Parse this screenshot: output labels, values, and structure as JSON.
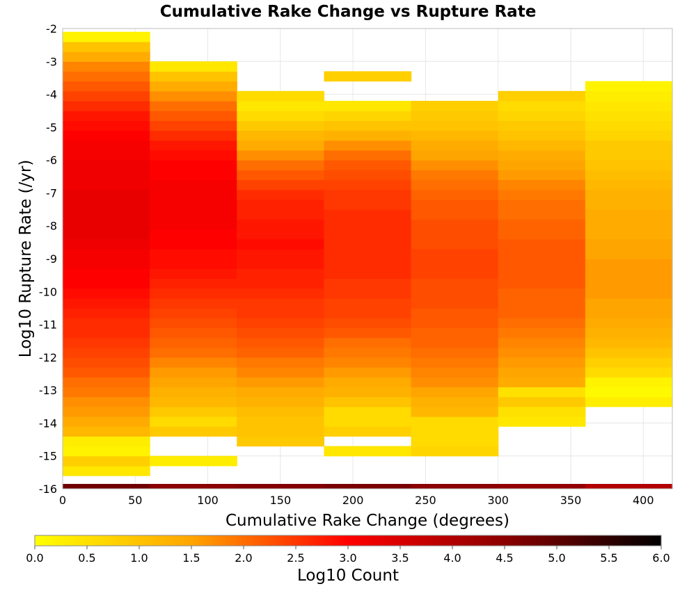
{
  "chart_data": {
    "type": "heatmap",
    "title": "Cumulative Rake Change vs Rupture Rate",
    "xlabel": "Cumulative Rake Change (degrees)",
    "ylabel": "Log10 Rupture Rate (/yr)",
    "xlim": [
      0,
      420
    ],
    "ylim": [
      -16,
      -2
    ],
    "x_ticks": [
      "0",
      "50",
      "100",
      "150",
      "200",
      "250",
      "300",
      "350",
      "400"
    ],
    "x_tick_values": [
      0,
      50,
      100,
      150,
      200,
      250,
      300,
      350,
      400
    ],
    "y_ticks": [
      "-2",
      "-3",
      "-4",
      "-5",
      "-6",
      "-7",
      "-8",
      "-9",
      "-10",
      "-11",
      "-12",
      "-13",
      "-14",
      "-15",
      "-16"
    ],
    "y_tick_values": [
      -2,
      -3,
      -4,
      -5,
      -6,
      -7,
      -8,
      -9,
      -10,
      -11,
      -12,
      -13,
      -14,
      -15,
      -16
    ],
    "grid": true,
    "x_bin_width": 60,
    "y_bin_height": 0.3,
    "colorscale": {
      "label": "Log10 Count",
      "min": 0.0,
      "max": 6.0,
      "ticks": [
        "0.0",
        "0.5",
        "1.0",
        "1.5",
        "2.0",
        "2.5",
        "3.0",
        "3.5",
        "4.0",
        "4.5",
        "5.0",
        "5.5",
        "6.0"
      ],
      "colors": [
        "#ffff00",
        "#ffa500",
        "#ff0000",
        "#8b0000",
        "#000000"
      ]
    },
    "columns": [
      {
        "x_start": 0,
        "y_start": -15.6,
        "values": [
          0.4,
          0.8,
          0.2,
          0.3,
          1.2,
          1.4,
          1.6,
          1.7,
          1.9,
          2.0,
          2.2,
          2.3,
          2.4,
          2.5,
          2.6,
          2.6,
          2.7,
          2.8,
          2.9,
          3.0,
          3.0,
          3.1,
          3.1,
          3.2,
          3.3,
          3.3,
          3.3,
          3.3,
          3.3,
          3.2,
          3.2,
          3.2,
          3.1,
          3.1,
          3.0,
          2.9,
          2.8,
          2.6,
          2.4,
          2.2,
          2.0,
          1.8,
          1.4,
          1.0,
          0.2
        ]
      },
      {
        "x_start": 60,
        "y_start": -15.3,
        "values": [
          0.3,
          null,
          null,
          0.9,
          0.6,
          0.9,
          1.2,
          1.3,
          1.5,
          1.6,
          1.8,
          2.0,
          2.1,
          2.2,
          2.3,
          2.4,
          2.5,
          2.6,
          2.7,
          2.8,
          2.9,
          2.9,
          3.0,
          3.0,
          3.1,
          3.1,
          3.1,
          3.1,
          3.1,
          3.0,
          3.0,
          2.9,
          2.8,
          2.6,
          2.4,
          2.2,
          2.0,
          1.7,
          1.4,
          1.0,
          0.4
        ]
      },
      {
        "x_start": 120,
        "y_start": -14.7,
        "values": [
          0.9,
          1.0,
          1.0,
          1.1,
          1.3,
          1.4,
          1.6,
          1.8,
          1.9,
          2.1,
          2.2,
          2.3,
          2.4,
          2.5,
          2.5,
          2.6,
          2.7,
          2.7,
          2.8,
          2.8,
          2.9,
          2.8,
          2.8,
          2.7,
          2.7,
          2.6,
          2.4,
          2.2,
          2.0,
          1.7,
          1.4,
          1.2,
          0.9,
          0.6,
          0.4,
          0.6
        ]
      },
      {
        "x_start": 180,
        "y_start": -15.0,
        "values": [
          0.4,
          null,
          0.8,
          0.6,
          0.6,
          1.0,
          1.3,
          1.4,
          1.6,
          1.8,
          1.9,
          2.0,
          2.2,
          2.3,
          2.4,
          2.4,
          2.5,
          2.5,
          2.6,
          2.6,
          2.6,
          2.6,
          2.6,
          2.6,
          2.6,
          2.5,
          2.5,
          2.4,
          2.3,
          2.2,
          2.0,
          1.7,
          1.3,
          1.0,
          0.7,
          0.4,
          null,
          null,
          0.8
        ]
      },
      {
        "x_start": 240,
        "y_start": -15.0,
        "values": [
          0.7,
          0.6,
          0.6,
          0.6,
          1.2,
          1.3,
          1.5,
          1.7,
          1.8,
          1.9,
          2.0,
          2.1,
          2.1,
          2.2,
          2.2,
          2.3,
          2.3,
          2.3,
          2.4,
          2.4,
          2.4,
          2.3,
          2.3,
          2.3,
          2.2,
          2.2,
          2.1,
          2.0,
          1.9,
          1.7,
          1.5,
          1.4,
          1.2,
          1.0,
          0.9,
          0.8
        ]
      },
      {
        "x_start": 300,
        "y_start": -14.1,
        "values": [
          0.4,
          0.5,
          0.9,
          0.5,
          1.4,
          1.5,
          1.6,
          1.7,
          1.8,
          1.9,
          2.0,
          2.1,
          2.1,
          2.1,
          2.2,
          2.2,
          2.2,
          2.2,
          2.2,
          2.1,
          2.1,
          2.0,
          2.0,
          1.9,
          1.8,
          1.6,
          1.5,
          1.4,
          1.2,
          1.0,
          0.9,
          0.7,
          0.6,
          0.8
        ]
      },
      {
        "x_start": 360,
        "y_start": -13.5,
        "values": [
          0.3,
          0.1,
          0.2,
          0.6,
          0.8,
          1.0,
          1.2,
          1.3,
          1.4,
          1.5,
          1.5,
          1.6,
          1.6,
          1.6,
          1.6,
          1.5,
          1.5,
          1.4,
          1.4,
          1.4,
          1.3,
          1.3,
          1.2,
          1.1,
          1.0,
          0.9,
          0.9,
          0.7,
          0.6,
          0.5,
          0.4,
          0.3,
          0.2
        ]
      }
    ],
    "floor_row": {
      "y": -16.0,
      "values": [
        4.8,
        4.5,
        4.6,
        4.7,
        4.5,
        4.4,
        4.0
      ]
    }
  }
}
